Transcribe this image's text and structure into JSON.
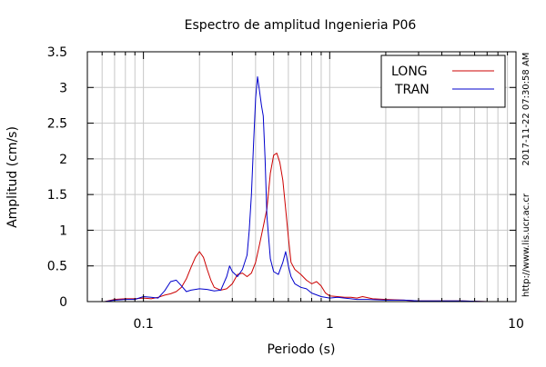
{
  "chart_data": {
    "type": "line",
    "title": "Espectro de amplitud Ingenieria P06",
    "xlabel": "Periodo (s)",
    "ylabel": "Amplitud (cm/s)",
    "x_scale": "log",
    "xlim": [
      0.05,
      10
    ],
    "ylim": [
      0,
      3.5
    ],
    "x_ticks": [
      {
        "value": 0.1,
        "label": "0.1"
      },
      {
        "value": 1,
        "label": "1"
      },
      {
        "value": 10,
        "label": "10"
      }
    ],
    "y_ticks": [
      {
        "value": 0,
        "label": "0"
      },
      {
        "value": 0.5,
        "label": "0.5"
      },
      {
        "value": 1,
        "label": "1"
      },
      {
        "value": 1.5,
        "label": "1.5"
      },
      {
        "value": 2,
        "label": "2"
      },
      {
        "value": 2.5,
        "label": "2.5"
      },
      {
        "value": 3,
        "label": "3"
      },
      {
        "value": 3.5,
        "label": "3.5"
      }
    ],
    "grid": true,
    "legend_position": "top-right",
    "series": [
      {
        "name": "LONG",
        "color": "#cc0000",
        "x": [
          0.062,
          0.07,
          0.08,
          0.09,
          0.1,
          0.11,
          0.12,
          0.13,
          0.14,
          0.15,
          0.16,
          0.17,
          0.18,
          0.19,
          0.2,
          0.21,
          0.22,
          0.23,
          0.24,
          0.26,
          0.28,
          0.3,
          0.32,
          0.34,
          0.36,
          0.38,
          0.4,
          0.42,
          0.44,
          0.46,
          0.48,
          0.5,
          0.52,
          0.54,
          0.56,
          0.58,
          0.6,
          0.62,
          0.65,
          0.7,
          0.75,
          0.8,
          0.85,
          0.9,
          0.95,
          1.0,
          1.1,
          1.2,
          1.3,
          1.4,
          1.5,
          1.7,
          2.0,
          2.5,
          3.0,
          4.0,
          5.0,
          7.0,
          10.0
        ],
        "y": [
          0.0,
          0.03,
          0.04,
          0.04,
          0.05,
          0.04,
          0.06,
          0.09,
          0.11,
          0.14,
          0.2,
          0.32,
          0.48,
          0.62,
          0.7,
          0.62,
          0.45,
          0.3,
          0.2,
          0.16,
          0.18,
          0.25,
          0.38,
          0.4,
          0.35,
          0.4,
          0.55,
          0.8,
          1.05,
          1.3,
          1.8,
          2.05,
          2.08,
          1.95,
          1.7,
          1.3,
          0.9,
          0.55,
          0.45,
          0.38,
          0.3,
          0.25,
          0.28,
          0.22,
          0.12,
          0.08,
          0.07,
          0.06,
          0.06,
          0.05,
          0.07,
          0.04,
          0.03,
          0.02,
          0.01,
          0.01,
          0.01,
          0.0,
          0.0
        ]
      },
      {
        "name": "TRAN",
        "color": "#0000cc",
        "x": [
          0.062,
          0.07,
          0.08,
          0.09,
          0.1,
          0.11,
          0.12,
          0.13,
          0.14,
          0.15,
          0.16,
          0.17,
          0.18,
          0.2,
          0.22,
          0.24,
          0.26,
          0.28,
          0.29,
          0.3,
          0.32,
          0.34,
          0.36,
          0.37,
          0.38,
          0.39,
          0.4,
          0.41,
          0.42,
          0.43,
          0.44,
          0.45,
          0.46,
          0.48,
          0.5,
          0.53,
          0.56,
          0.58,
          0.6,
          0.62,
          0.65,
          0.7,
          0.75,
          0.8,
          0.9,
          1.0,
          1.1,
          1.2,
          1.4,
          1.6,
          2.0,
          2.5,
          3.0,
          4.0,
          5.0,
          7.0,
          10.0
        ],
        "y": [
          0.0,
          0.02,
          0.03,
          0.03,
          0.07,
          0.06,
          0.05,
          0.15,
          0.28,
          0.3,
          0.22,
          0.14,
          0.16,
          0.18,
          0.17,
          0.15,
          0.16,
          0.35,
          0.5,
          0.42,
          0.35,
          0.45,
          0.65,
          1.0,
          1.5,
          2.2,
          2.85,
          3.15,
          2.95,
          2.75,
          2.6,
          2.0,
          1.2,
          0.6,
          0.42,
          0.38,
          0.55,
          0.7,
          0.5,
          0.35,
          0.25,
          0.2,
          0.18,
          0.12,
          0.07,
          0.05,
          0.06,
          0.05,
          0.03,
          0.03,
          0.02,
          0.02,
          0.01,
          0.01,
          0.01,
          0.0,
          0.0
        ]
      }
    ],
    "side_notes": [
      "2017-11-22 07:30:58 AM",
      "http://www.lis.ucr.ac.cr"
    ]
  }
}
